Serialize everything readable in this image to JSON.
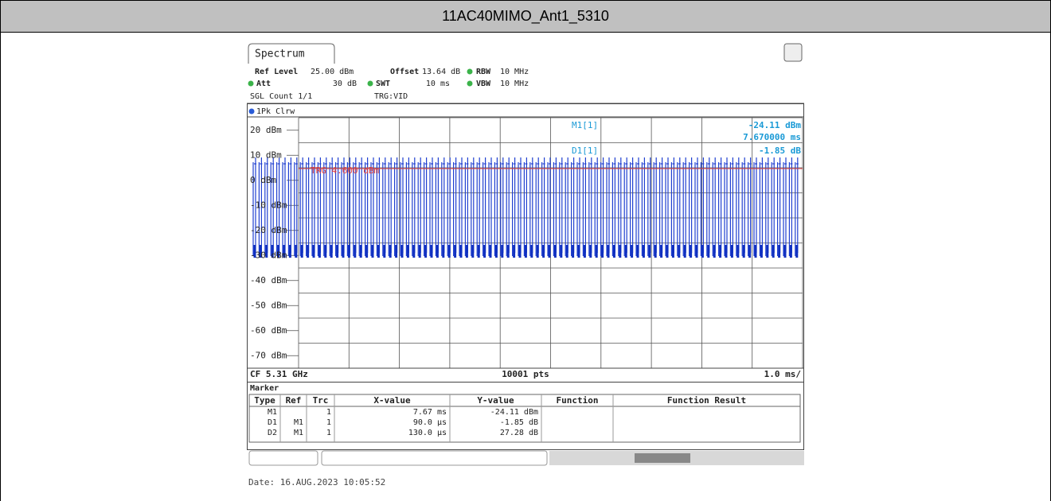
{
  "header": {
    "title": "11AC40MIMO_Ant1_5310"
  },
  "tab": "Spectrum",
  "settings": {
    "ref_level_label": "Ref Level",
    "ref_level": "25.00 dBm",
    "offset_label": "Offset",
    "offset": "13.64 dB",
    "rbw_label": "RBW",
    "rbw": "10 MHz",
    "att_label": "Att",
    "att": "30 dB",
    "swt_label": "SWT",
    "swt": "10 ms",
    "vbw_label": "VBW",
    "vbw": "10 MHz",
    "count": "SGL Count 1/1",
    "trigger": "TRG:VID"
  },
  "trace_label": "1Pk Clrw",
  "y_axis_labels": [
    "20 dBm",
    "10 dBm",
    "0 dBm",
    "-10 dBm",
    "-20 dBm",
    "-30 dBm",
    "-40 dBm",
    "-50 dBm",
    "-60 dBm",
    "-70 dBm"
  ],
  "trigger_line": "TRG 4.600 dBm",
  "plot_markers": [
    {
      "label": "M1[1]",
      "value": "-24.11 dBm",
      "position": "7.670000 ms"
    },
    {
      "label": "D1[1]",
      "value": "-1.85 dB"
    }
  ],
  "footer": {
    "cf": "CF 5.31 GHz",
    "points": "10001 pts",
    "span": "1.0 ms/"
  },
  "marker_table": {
    "title": "Marker",
    "columns": [
      "Type",
      "Ref",
      "Trc",
      "X-value",
      "Y-value",
      "Function",
      "Function Result"
    ],
    "rows": [
      {
        "type": "M1",
        "trc": "1",
        "x": "7.67 ms",
        "y": "-24.11 dBm"
      },
      {
        "type": "D1",
        "ref": "M1",
        "trc": "1",
        "x": "90.0 µs",
        "y": "-1.85 dB"
      },
      {
        "type": "D2",
        "ref": "M1",
        "trc": "1",
        "x": "130.0 µs",
        "y": "27.28 dB"
      }
    ]
  },
  "date": "Date: 16.AUG.2023 10:05:52"
}
